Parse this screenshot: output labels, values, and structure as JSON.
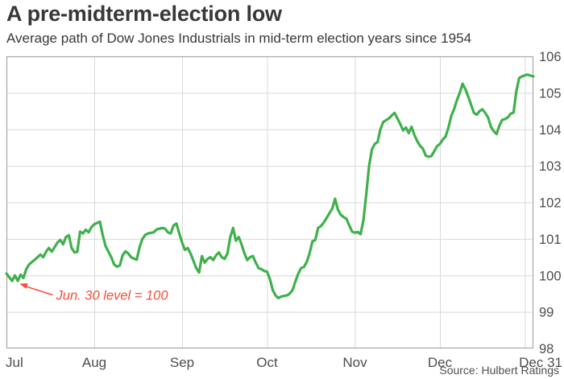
{
  "header": {
    "title": "A pre-midterm-election low",
    "subtitle": "Average path of Dow Jones Industrials in mid-term election years since 1954"
  },
  "source_label": "Source: Hulbert Ratings",
  "colors": {
    "line": "#3fb04b",
    "grid": "#d9d9d9",
    "frame": "#a8a8a8",
    "axis_text": "#4d4d4d",
    "title_text": "#383838",
    "annotation": "#f4503c",
    "background": "#ffffff"
  },
  "chart_data": {
    "type": "line",
    "title": "A pre-midterm-election low",
    "subtitle": "Average path of Dow Jones Industrials in mid-term election years since 1954",
    "xlabel": "",
    "ylabel": "",
    "grid": true,
    "legend": "none",
    "ylim": [
      98,
      106
    ],
    "y_ticks": [
      98,
      99,
      100,
      101,
      102,
      103,
      104,
      105,
      106
    ],
    "y_tick_side": "right",
    "x_domain_days": [
      0,
      186
    ],
    "x_ticks": [
      {
        "label": "Jul",
        "day": 0
      },
      {
        "label": "Aug",
        "day": 31
      },
      {
        "label": "Sep",
        "day": 62
      },
      {
        "label": "Oct",
        "day": 92
      },
      {
        "label": "Nov",
        "day": 123
      },
      {
        "label": "Dec",
        "day": 153
      },
      {
        "label": "Dec 31",
        "day": 183
      }
    ],
    "annotation": {
      "text": "Jun. 30 level = 100",
      "target_day": 4,
      "target_value": 99.87,
      "label_day": 17.5,
      "label_value": 99.33
    },
    "series": [
      {
        "name": "Dow Jones Industrials average path (indexed, Jun. 30 = 100)",
        "color": "#3fb04b",
        "points": [
          [
            0,
            100.05
          ],
          [
            1,
            99.95
          ],
          [
            2,
            99.85
          ],
          [
            3,
            100.0
          ],
          [
            4,
            99.85
          ],
          [
            5,
            100.02
          ],
          [
            6,
            99.93
          ],
          [
            7,
            100.17
          ],
          [
            8,
            100.3
          ],
          [
            10,
            100.43
          ],
          [
            11,
            100.5
          ],
          [
            12,
            100.57
          ],
          [
            13,
            100.5
          ],
          [
            14,
            100.65
          ],
          [
            15,
            100.75
          ],
          [
            16,
            100.65
          ],
          [
            18,
            100.9
          ],
          [
            19,
            100.97
          ],
          [
            20,
            100.85
          ],
          [
            21,
            101.05
          ],
          [
            22,
            101.1
          ],
          [
            23,
            100.75
          ],
          [
            24,
            100.63
          ],
          [
            25,
            100.65
          ],
          [
            26,
            101.2
          ],
          [
            27,
            101.15
          ],
          [
            28,
            101.25
          ],
          [
            29,
            101.18
          ],
          [
            30,
            101.32
          ],
          [
            31,
            101.4
          ],
          [
            33,
            101.47
          ],
          [
            34,
            101.1
          ],
          [
            35,
            100.8
          ],
          [
            37,
            100.5
          ],
          [
            38,
            100.3
          ],
          [
            39,
            100.24
          ],
          [
            40,
            100.27
          ],
          [
            41,
            100.55
          ],
          [
            42,
            100.66
          ],
          [
            43,
            100.6
          ],
          [
            44,
            100.5
          ],
          [
            45,
            100.46
          ],
          [
            46,
            100.43
          ],
          [
            47,
            100.78
          ],
          [
            48,
            101.0
          ],
          [
            49,
            101.11
          ],
          [
            50,
            101.15
          ],
          [
            52,
            101.18
          ],
          [
            53,
            101.26
          ],
          [
            55,
            101.3
          ],
          [
            56,
            101.28
          ],
          [
            57,
            101.18
          ],
          [
            58,
            101.15
          ],
          [
            59,
            101.37
          ],
          [
            60,
            101.42
          ],
          [
            61,
            101.15
          ],
          [
            62,
            100.9
          ],
          [
            63,
            100.7
          ],
          [
            64,
            100.75
          ],
          [
            65,
            100.6
          ],
          [
            66,
            100.4
          ],
          [
            67,
            100.2
          ],
          [
            68,
            100.08
          ],
          [
            69,
            100.53
          ],
          [
            70,
            100.35
          ],
          [
            71,
            100.45
          ],
          [
            72,
            100.5
          ],
          [
            73,
            100.42
          ],
          [
            74,
            100.55
          ],
          [
            75,
            100.63
          ],
          [
            76,
            100.5
          ],
          [
            77,
            100.45
          ],
          [
            78,
            100.6
          ],
          [
            79,
            101.05
          ],
          [
            80,
            101.3
          ],
          [
            81,
            100.95
          ],
          [
            82,
            101.05
          ],
          [
            83,
            100.85
          ],
          [
            84,
            100.6
          ],
          [
            85,
            100.42
          ],
          [
            86,
            100.5
          ],
          [
            87,
            100.53
          ],
          [
            88,
            100.35
          ],
          [
            89,
            100.2
          ],
          [
            90,
            100.17
          ],
          [
            91,
            100.12
          ],
          [
            92,
            100.1
          ],
          [
            93,
            99.9
          ],
          [
            94,
            99.6
          ],
          [
            95,
            99.45
          ],
          [
            96,
            99.38
          ],
          [
            97,
            99.42
          ],
          [
            98,
            99.44
          ],
          [
            99,
            99.45
          ],
          [
            100,
            99.5
          ],
          [
            101,
            99.6
          ],
          [
            102,
            99.83
          ],
          [
            103,
            100.05
          ],
          [
            104,
            100.2
          ],
          [
            105,
            100.23
          ],
          [
            106,
            100.37
          ],
          [
            107,
            100.6
          ],
          [
            108,
            100.93
          ],
          [
            109,
            100.97
          ],
          [
            110,
            101.3
          ],
          [
            111,
            101.35
          ],
          [
            112,
            101.45
          ],
          [
            113,
            101.57
          ],
          [
            114,
            101.7
          ],
          [
            115,
            101.83
          ],
          [
            116,
            102.1
          ],
          [
            117,
            101.8
          ],
          [
            118,
            101.66
          ],
          [
            119,
            101.6
          ],
          [
            120,
            101.55
          ],
          [
            121,
            101.37
          ],
          [
            122,
            101.2
          ],
          [
            123,
            101.17
          ],
          [
            124,
            101.19
          ],
          [
            125,
            101.13
          ],
          [
            126,
            101.5
          ],
          [
            127,
            102.2
          ],
          [
            128,
            103.0
          ],
          [
            129,
            103.45
          ],
          [
            130,
            103.6
          ],
          [
            131,
            103.65
          ],
          [
            132,
            104.0
          ],
          [
            133,
            104.2
          ],
          [
            134,
            104.25
          ],
          [
            135,
            104.3
          ],
          [
            136,
            104.38
          ],
          [
            137,
            104.45
          ],
          [
            138,
            104.3
          ],
          [
            139,
            104.15
          ],
          [
            140,
            103.97
          ],
          [
            141,
            104.05
          ],
          [
            142,
            103.9
          ],
          [
            143,
            104.07
          ],
          [
            144,
            103.85
          ],
          [
            145,
            103.68
          ],
          [
            146,
            103.55
          ],
          [
            147,
            103.47
          ],
          [
            148,
            103.28
          ],
          [
            149,
            103.25
          ],
          [
            150,
            103.27
          ],
          [
            151,
            103.4
          ],
          [
            152,
            103.54
          ],
          [
            153,
            103.6
          ],
          [
            154,
            103.72
          ],
          [
            155,
            103.8
          ],
          [
            156,
            104.04
          ],
          [
            157,
            104.36
          ],
          [
            158,
            104.55
          ],
          [
            159,
            104.8
          ],
          [
            160,
            105.0
          ],
          [
            161,
            105.25
          ],
          [
            162,
            105.1
          ],
          [
            163,
            104.9
          ],
          [
            164,
            104.68
          ],
          [
            165,
            104.45
          ],
          [
            166,
            104.4
          ],
          [
            167,
            104.5
          ],
          [
            168,
            104.55
          ],
          [
            169,
            104.45
          ],
          [
            170,
            104.33
          ],
          [
            171,
            104.07
          ],
          [
            172,
            103.95
          ],
          [
            173,
            103.87
          ],
          [
            174,
            104.1
          ],
          [
            175,
            104.26
          ],
          [
            176,
            104.28
          ],
          [
            177,
            104.33
          ],
          [
            178,
            104.43
          ],
          [
            179,
            104.46
          ],
          [
            180,
            105.05
          ],
          [
            181,
            105.41
          ],
          [
            182,
            105.45
          ],
          [
            183,
            105.48
          ],
          [
            184,
            105.5
          ],
          [
            185,
            105.47
          ],
          [
            186,
            105.45
          ]
        ]
      }
    ]
  }
}
